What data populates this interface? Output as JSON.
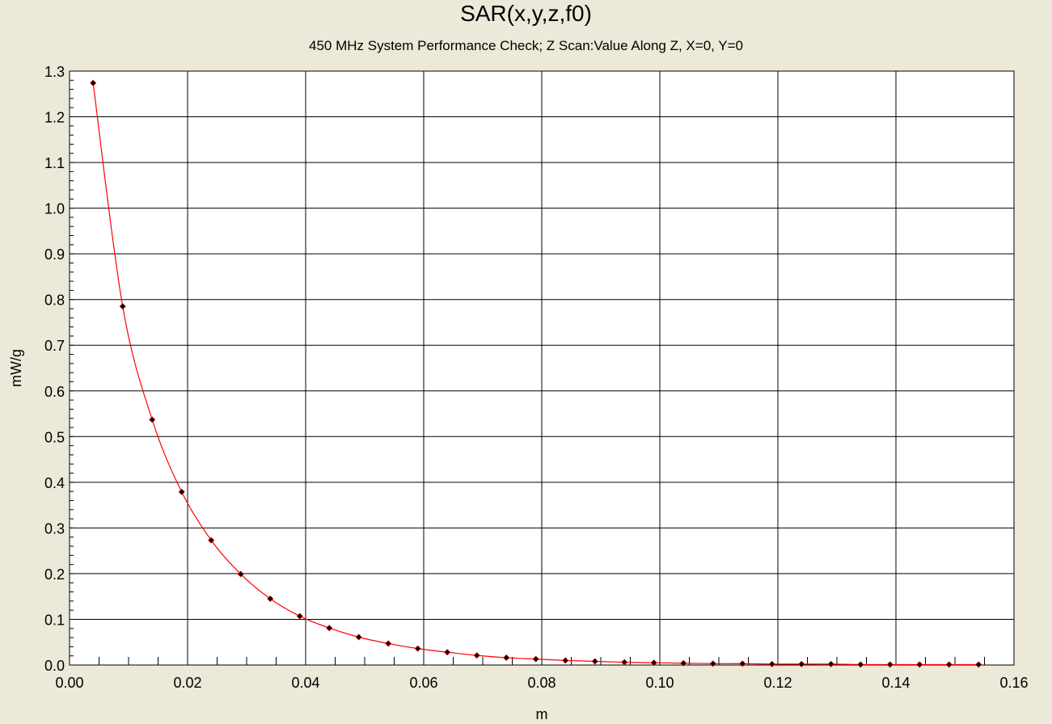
{
  "colors": {
    "background": "#ece9d8",
    "plot_background": "#ffffff",
    "grid": "#000000",
    "series_line": "#ff0000",
    "series_marker": "#000000"
  },
  "chart_data": {
    "type": "line",
    "title": "SAR(x,y,z,f0)",
    "subtitle": "450 MHz System Performance Check; Z Scan:Value Along Z, X=0, Y=0",
    "xlabel": "m",
    "ylabel": "mW/g",
    "xlim": [
      0.0,
      0.16
    ],
    "ylim": [
      0.0,
      1.3
    ],
    "grid": true,
    "x_ticks": [
      "0.00",
      "0.02",
      "0.04",
      "0.06",
      "0.08",
      "0.10",
      "0.12",
      "0.14",
      "0.16"
    ],
    "y_ticks": [
      "0.0",
      "0.1",
      "0.2",
      "0.3",
      "0.4",
      "0.5",
      "0.6",
      "0.7",
      "0.8",
      "0.9",
      "1.0",
      "1.1",
      "1.2",
      "1.3"
    ],
    "x_tick_values": [
      0.0,
      0.02,
      0.04,
      0.06,
      0.08,
      0.1,
      0.12,
      0.14,
      0.16
    ],
    "y_tick_values": [
      0.0,
      0.1,
      0.2,
      0.3,
      0.4,
      0.5,
      0.6,
      0.7,
      0.8,
      0.9,
      1.0,
      1.1,
      1.2,
      1.3
    ],
    "series": [
      {
        "x": [
          0.004,
          0.009,
          0.014,
          0.019,
          0.024,
          0.029,
          0.034,
          0.039,
          0.044,
          0.049,
          0.054,
          0.059,
          0.064,
          0.069,
          0.074,
          0.079,
          0.084,
          0.089,
          0.094,
          0.099,
          0.104,
          0.109,
          0.114,
          0.119,
          0.124,
          0.129,
          0.134,
          0.139,
          0.144,
          0.149,
          0.154
        ],
        "y": [
          1.274,
          0.785,
          0.537,
          0.379,
          0.273,
          0.199,
          0.145,
          0.107,
          0.081,
          0.061,
          0.047,
          0.036,
          0.028,
          0.021,
          0.016,
          0.013,
          0.01,
          0.008,
          0.006,
          0.005,
          0.004,
          0.003,
          0.003,
          0.002,
          0.002,
          0.002,
          0.001,
          0.001,
          0.001,
          0.001,
          0.001
        ]
      }
    ]
  }
}
